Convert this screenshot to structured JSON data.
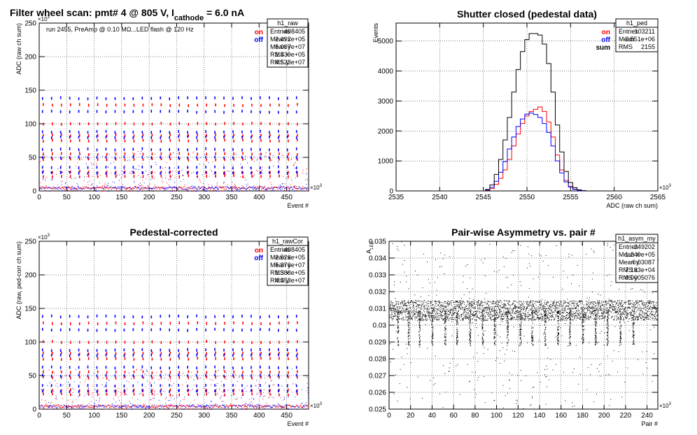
{
  "panels": [
    {
      "title": "Filter wheel scan: pmt#   4 @   805 V, I",
      "title_sub": "cathode",
      "title_tail": " = 6.0 nA",
      "annotation": "run 2455, PreAmp @ 0.10 MΩ...LED flash @  120 Hz",
      "xlabel": "Event #",
      "ylabel": "ADC (raw ch sum)",
      "x_multiplier": "×10",
      "x_multiplier_exp": "3",
      "y_multiplier": "×10",
      "y_multiplier_exp": "3",
      "legend": [
        {
          "label": "on",
          "color": "#ff0000"
        },
        {
          "label": "off",
          "color": "#0000ff"
        }
      ],
      "stats": {
        "name": "h1_raw",
        "rows": [
          [
            "Entries",
            "498405"
          ],
          [
            "Mean x",
            "2.492e+05"
          ],
          [
            "Mean y",
            "5.087e+07"
          ],
          [
            "RMS x",
            "1.439e+05"
          ],
          [
            "RMS y",
            "4.523e+07"
          ]
        ]
      }
    },
    {
      "title": "Shutter closed (pedestal data)",
      "xlabel": "ADC (raw ch sum)",
      "ylabel": "Events",
      "x_multiplier": "×10",
      "x_multiplier_exp": "3",
      "legend": [
        {
          "label": "on",
          "color": "#ff0000"
        },
        {
          "label": "off",
          "color": "#0000ff"
        },
        {
          "label": "sum",
          "color": "#000000"
        }
      ],
      "stats": {
        "name": "h1_ped",
        "rows": [
          [
            "Entries",
            "103211"
          ],
          [
            "Mean",
            "2.551e+06"
          ],
          [
            "RMS",
            "2155"
          ]
        ]
      }
    },
    {
      "title": "Pedestal-corrected",
      "xlabel": "Event #",
      "ylabel": "ADC (raw, ped-corr ch sum)",
      "x_multiplier": "×10",
      "x_multiplier_exp": "3",
      "y_multiplier": "×10",
      "y_multiplier_exp": "3",
      "legend": [
        {
          "label": "on",
          "color": "#ff0000"
        },
        {
          "label": "off",
          "color": "#0000ff"
        }
      ],
      "stats": {
        "name": "h1_rawCor",
        "rows": [
          [
            "Entries",
            "498405"
          ],
          [
            "Mean x",
            "2.526e+05"
          ],
          [
            "Mean y",
            "5.376e+07"
          ],
          [
            "RMS x",
            "1.388e+05"
          ],
          [
            "RMS y",
            "4.453e+07"
          ]
        ]
      }
    },
    {
      "title": "Pair-wise Asymmetry vs. pair #",
      "xlabel": "Pair #",
      "ylabel": "A",
      "ylabel_sub": "LED",
      "x_multiplier": "×10",
      "x_multiplier_exp": "3",
      "stats": {
        "name": "h1_asym_my",
        "rows": [
          [
            "Entries",
            "249202"
          ],
          [
            "Mean x",
            "1.249e+05"
          ],
          [
            "Mean y",
            "0.03087"
          ],
          [
            "RMS x",
            "7.183e+04"
          ],
          [
            "RMS y",
            "0.0005076"
          ]
        ]
      }
    }
  ],
  "chart_data": [
    {
      "type": "scatter",
      "title": "Filter wheel scan: pmt#   4 @   805 V, I cathode = 6.0 nA",
      "xlabel": "Event #",
      "ylabel": "ADC (raw ch sum)",
      "xlim": [
        0,
        490
      ],
      "ylim": [
        0,
        250
      ],
      "x_ticks": [
        0,
        50,
        100,
        150,
        200,
        250,
        300,
        350,
        400,
        450
      ],
      "y_ticks": [
        0,
        50,
        100,
        150,
        200,
        250
      ],
      "grid": true,
      "legend_position": "top-right",
      "series": [
        {
          "name": "on",
          "color": "#ff0000",
          "levels": [
            128,
            100,
            83,
            75,
            55,
            47,
            28,
            22
          ],
          "cluster_x_start": 5,
          "cluster_x_period": 16.5
        },
        {
          "name": "off",
          "color": "#0000ff",
          "levels": [
            138,
            118,
            88,
            80,
            62,
            50,
            35,
            27
          ],
          "cluster_x_start": 5,
          "cluster_x_period": 16.5
        }
      ]
    },
    {
      "type": "line",
      "title": "Shutter closed (pedestal data)",
      "xlabel": "ADC (raw ch sum)",
      "ylabel": "Events",
      "xlim": [
        2535,
        2565
      ],
      "ylim": [
        0,
        5600
      ],
      "x_ticks": [
        2535,
        2540,
        2545,
        2550,
        2555,
        2560,
        2565
      ],
      "y_ticks": [
        0,
        1000,
        2000,
        3000,
        4000,
        5000
      ],
      "grid": true,
      "legend_position": "top-right",
      "x": [
        2545.5,
        2546.0,
        2546.5,
        2547.0,
        2547.5,
        2548.0,
        2548.5,
        2549.0,
        2549.5,
        2550.0,
        2550.5,
        2551.0,
        2551.5,
        2552.0,
        2552.5,
        2553.0,
        2553.5,
        2554.0,
        2554.5,
        2555.0,
        2555.5,
        2556.0,
        2556.5
      ],
      "series": [
        {
          "name": "on",
          "color": "#ff0000",
          "values": [
            20,
            80,
            220,
            420,
            700,
            1050,
            1500,
            1900,
            2250,
            2500,
            2650,
            2720,
            2800,
            2650,
            2300,
            1800,
            1200,
            700,
            350,
            150,
            60,
            20,
            5
          ]
        },
        {
          "name": "off",
          "color": "#0000ff",
          "values": [
            30,
            120,
            320,
            620,
            980,
            1400,
            1800,
            2150,
            2400,
            2560,
            2600,
            2550,
            2450,
            2250,
            1950,
            1500,
            1000,
            600,
            300,
            130,
            50,
            15,
            5
          ]
        },
        {
          "name": "sum",
          "color": "#000000",
          "values": [
            50,
            200,
            550,
            1050,
            1700,
            2450,
            3300,
            4050,
            4650,
            5050,
            5250,
            5250,
            5200,
            4900,
            4250,
            3300,
            2200,
            1300,
            650,
            280,
            110,
            35,
            10
          ]
        }
      ]
    },
    {
      "type": "scatter",
      "title": "Pedestal-corrected",
      "xlabel": "Event #",
      "ylabel": "ADC (raw, ped-corr ch sum)",
      "xlim": [
        0,
        490
      ],
      "ylim": [
        0,
        250
      ],
      "x_ticks": [
        0,
        50,
        100,
        150,
        200,
        250,
        300,
        350,
        400,
        450
      ],
      "y_ticks": [
        0,
        50,
        100,
        150,
        200,
        250
      ],
      "grid": true,
      "legend_position": "top-right",
      "series": [
        {
          "name": "on",
          "color": "#ff0000",
          "levels": [
            128,
            100,
            83,
            75,
            55,
            47,
            28,
            22
          ],
          "cluster_x_start": 5,
          "cluster_x_period": 16.5
        },
        {
          "name": "off",
          "color": "#0000ff",
          "levels": [
            138,
            118,
            88,
            80,
            62,
            50,
            35,
            27
          ],
          "cluster_x_start": 5,
          "cluster_x_period": 16.5
        }
      ]
    },
    {
      "type": "scatter",
      "title": "Pair-wise Asymmetry vs. pair #",
      "xlabel": "Pair #",
      "ylabel": "A LED",
      "xlim": [
        0,
        250
      ],
      "ylim": [
        0.025,
        0.035
      ],
      "x_ticks": [
        0,
        20,
        40,
        60,
        80,
        100,
        120,
        140,
        160,
        180,
        200,
        220,
        240
      ],
      "y_ticks": [
        0.025,
        0.026,
        0.027,
        0.028,
        0.029,
        0.03,
        0.031,
        0.032,
        0.033,
        0.034,
        0.035
      ],
      "grid": true,
      "band_center": 0.0309,
      "band_halfwidth": 0.0006,
      "dips_x": [
        8,
        18,
        28,
        40,
        52,
        63,
        75,
        87,
        98,
        110,
        122,
        133,
        145,
        157,
        168,
        180,
        192,
        203,
        215,
        227
      ],
      "dip_min": 0.0288,
      "series": [
        {
          "name": "",
          "color": "#000000"
        }
      ]
    }
  ]
}
